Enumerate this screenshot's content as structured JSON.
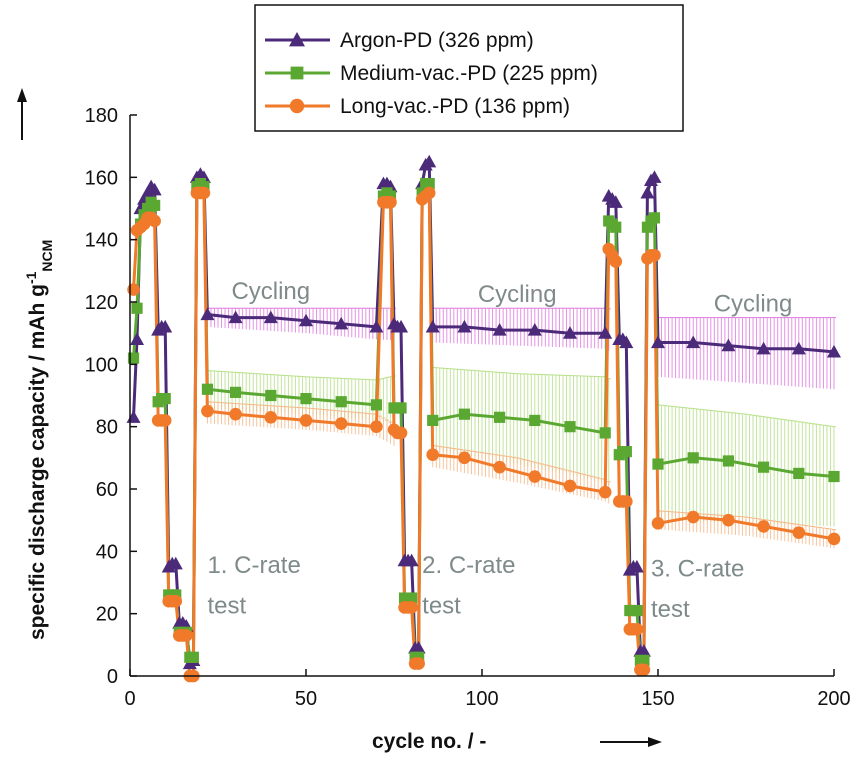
{
  "chart_data": {
    "type": "line",
    "xlabel": "cycle no. / -",
    "ylabel": "specific discharge capacity / mAh g",
    "ylabel_sup": "-1",
    "ylabel_sub": "NCM",
    "xlim": [
      0,
      200
    ],
    "ylim": [
      0,
      180
    ],
    "x_ticks": [
      0,
      50,
      100,
      150,
      200
    ],
    "y_ticks": [
      0,
      20,
      40,
      60,
      80,
      100,
      120,
      140,
      160,
      180
    ],
    "grid": false,
    "legend_position": "top-center",
    "annotations": [
      {
        "text": "Cycling",
        "x": 40,
        "y": 121
      },
      {
        "text": "Cycling",
        "x": 110,
        "y": 120
      },
      {
        "text": "Cycling",
        "x": 177,
        "y": 117
      },
      {
        "text": "1. C-rate",
        "x": 22,
        "y": 33
      },
      {
        "text": "test",
        "x": 22,
        "y": 20
      },
      {
        "text": "2. C-rate",
        "x": 83,
        "y": 33
      },
      {
        "text": "test",
        "x": 83,
        "y": 20
      },
      {
        "text": "3. C-rate",
        "x": 148,
        "y": 32
      },
      {
        "text": "test",
        "x": 148,
        "y": 19
      }
    ],
    "series": [
      {
        "name": "Argon-PD (326 ppm)",
        "color": "#4b2a7a",
        "band_color": "#e07ee0",
        "marker": "triangle",
        "points": [
          [
            1,
            83
          ],
          [
            2,
            108
          ],
          [
            3,
            150
          ],
          [
            4,
            153
          ],
          [
            5,
            155
          ],
          [
            6,
            157
          ],
          [
            7,
            156
          ],
          [
            8,
            111
          ],
          [
            9,
            112
          ],
          [
            10,
            112
          ],
          [
            11,
            35
          ],
          [
            12,
            36
          ],
          [
            13,
            36
          ],
          [
            14,
            17
          ],
          [
            15,
            17
          ],
          [
            16,
            16
          ],
          [
            17,
            4
          ],
          [
            18,
            5
          ],
          [
            19,
            160
          ],
          [
            20,
            161
          ],
          [
            21,
            160
          ],
          [
            22,
            116
          ],
          [
            30,
            115
          ],
          [
            40,
            115
          ],
          [
            50,
            114
          ],
          [
            60,
            113
          ],
          [
            70,
            112
          ],
          [
            72,
            158
          ],
          [
            73,
            158
          ],
          [
            74,
            157
          ],
          [
            75,
            113
          ],
          [
            76,
            112
          ],
          [
            77,
            112
          ],
          [
            78,
            37
          ],
          [
            79,
            37
          ],
          [
            80,
            37
          ],
          [
            81,
            9
          ],
          [
            82,
            9
          ],
          [
            83,
            158
          ],
          [
            84,
            164
          ],
          [
            85,
            165
          ],
          [
            86,
            112
          ],
          [
            95,
            112
          ],
          [
            105,
            111
          ],
          [
            115,
            111
          ],
          [
            125,
            110
          ],
          [
            135,
            110
          ],
          [
            136,
            154
          ],
          [
            137,
            153
          ],
          [
            138,
            152
          ],
          [
            139,
            108
          ],
          [
            140,
            108
          ],
          [
            141,
            107
          ],
          [
            142,
            34
          ],
          [
            143,
            35
          ],
          [
            144,
            35
          ],
          [
            145,
            8
          ],
          [
            146,
            8
          ],
          [
            147,
            155
          ],
          [
            148,
            159
          ],
          [
            149,
            160
          ],
          [
            150,
            107
          ],
          [
            160,
            107
          ],
          [
            170,
            106
          ],
          [
            180,
            105
          ],
          [
            190,
            105
          ],
          [
            200,
            104
          ]
        ],
        "band": [
          [
            22,
            112,
            118
          ],
          [
            50,
            110,
            118
          ],
          [
            70,
            108,
            118
          ],
          [
            86,
            107,
            118
          ],
          [
            110,
            106,
            118
          ],
          [
            135,
            105,
            118
          ],
          [
            150,
            96,
            115
          ],
          [
            175,
            94,
            115
          ],
          [
            200,
            92,
            115
          ]
        ]
      },
      {
        "name": "Medium-vac.-PD (225 ppm)",
        "color": "#5aa832",
        "band_color": "#b8e08a",
        "marker": "square",
        "points": [
          [
            1,
            102
          ],
          [
            2,
            118
          ],
          [
            3,
            145
          ],
          [
            4,
            148
          ],
          [
            5,
            150
          ],
          [
            6,
            152
          ],
          [
            7,
            151
          ],
          [
            8,
            88
          ],
          [
            9,
            89
          ],
          [
            10,
            89
          ],
          [
            11,
            26
          ],
          [
            12,
            26
          ],
          [
            13,
            26
          ],
          [
            14,
            14
          ],
          [
            15,
            14
          ],
          [
            16,
            14
          ],
          [
            17,
            6
          ],
          [
            18,
            6
          ],
          [
            19,
            157
          ],
          [
            20,
            158
          ],
          [
            21,
            157
          ],
          [
            22,
            92
          ],
          [
            30,
            91
          ],
          [
            40,
            90
          ],
          [
            50,
            89
          ],
          [
            60,
            88
          ],
          [
            70,
            87
          ],
          [
            72,
            154
          ],
          [
            73,
            155
          ],
          [
            74,
            154
          ],
          [
            75,
            86
          ],
          [
            76,
            86
          ],
          [
            77,
            86
          ],
          [
            78,
            25
          ],
          [
            79,
            25
          ],
          [
            80,
            25
          ],
          [
            81,
            6
          ],
          [
            82,
            6
          ],
          [
            83,
            155
          ],
          [
            84,
            158
          ],
          [
            85,
            158
          ],
          [
            86,
            82
          ],
          [
            95,
            84
          ],
          [
            105,
            83
          ],
          [
            115,
            82
          ],
          [
            125,
            80
          ],
          [
            135,
            78
          ],
          [
            136,
            146
          ],
          [
            137,
            145
          ],
          [
            138,
            144
          ],
          [
            139,
            71
          ],
          [
            140,
            72
          ],
          [
            141,
            72
          ],
          [
            142,
            21
          ],
          [
            143,
            21
          ],
          [
            144,
            21
          ],
          [
            145,
            5
          ],
          [
            146,
            5
          ],
          [
            147,
            144
          ],
          [
            148,
            146
          ],
          [
            149,
            147
          ],
          [
            150,
            68
          ],
          [
            160,
            70
          ],
          [
            170,
            69
          ],
          [
            180,
            67
          ],
          [
            190,
            65
          ],
          [
            200,
            64
          ]
        ],
        "band": [
          [
            22,
            86,
            98
          ],
          [
            50,
            84,
            96
          ],
          [
            70,
            82,
            95
          ],
          [
            86,
            73,
            99
          ],
          [
            110,
            68,
            97
          ],
          [
            135,
            62,
            96
          ],
          [
            150,
            50,
            87
          ],
          [
            175,
            49,
            84
          ],
          [
            200,
            48,
            80
          ]
        ]
      },
      {
        "name": "Long-vac.-PD (136 ppm)",
        "color": "#f07a2a",
        "band_color": "#f5b98a",
        "marker": "circle",
        "points": [
          [
            1,
            124
          ],
          [
            2,
            143
          ],
          [
            3,
            144
          ],
          [
            4,
            145
          ],
          [
            5,
            147
          ],
          [
            6,
            147
          ],
          [
            7,
            146
          ],
          [
            8,
            82
          ],
          [
            9,
            82
          ],
          [
            10,
            82
          ],
          [
            11,
            24
          ],
          [
            12,
            24
          ],
          [
            13,
            24
          ],
          [
            14,
            13
          ],
          [
            15,
            13
          ],
          [
            16,
            13
          ],
          [
            17,
            0
          ],
          [
            18,
            0
          ],
          [
            19,
            155
          ],
          [
            20,
            155
          ],
          [
            21,
            155
          ],
          [
            22,
            85
          ],
          [
            30,
            84
          ],
          [
            40,
            83
          ],
          [
            50,
            82
          ],
          [
            60,
            81
          ],
          [
            70,
            80
          ],
          [
            72,
            152
          ],
          [
            73,
            152
          ],
          [
            74,
            152
          ],
          [
            75,
            79
          ],
          [
            76,
            78
          ],
          [
            77,
            78
          ],
          [
            78,
            22
          ],
          [
            79,
            22
          ],
          [
            80,
            22
          ],
          [
            81,
            4
          ],
          [
            82,
            4
          ],
          [
            83,
            153
          ],
          [
            84,
            154
          ],
          [
            85,
            155
          ],
          [
            86,
            71
          ],
          [
            95,
            70
          ],
          [
            105,
            67
          ],
          [
            115,
            64
          ],
          [
            125,
            61
          ],
          [
            135,
            59
          ],
          [
            136,
            137
          ],
          [
            137,
            135
          ],
          [
            138,
            133
          ],
          [
            139,
            56
          ],
          [
            140,
            56
          ],
          [
            141,
            56
          ],
          [
            142,
            15
          ],
          [
            143,
            15
          ],
          [
            144,
            15
          ],
          [
            145,
            2
          ],
          [
            146,
            2
          ],
          [
            147,
            134
          ],
          [
            148,
            135
          ],
          [
            149,
            135
          ],
          [
            150,
            49
          ],
          [
            160,
            51
          ],
          [
            170,
            50
          ],
          [
            180,
            48
          ],
          [
            190,
            46
          ],
          [
            200,
            44
          ]
        ],
        "band": [
          [
            22,
            81,
            88
          ],
          [
            50,
            79,
            86
          ],
          [
            70,
            77,
            84
          ],
          [
            86,
            67,
            74
          ],
          [
            110,
            62,
            70
          ],
          [
            135,
            56,
            63
          ],
          [
            150,
            47,
            53
          ],
          [
            175,
            45,
            51
          ],
          [
            200,
            41,
            47
          ]
        ]
      }
    ]
  }
}
